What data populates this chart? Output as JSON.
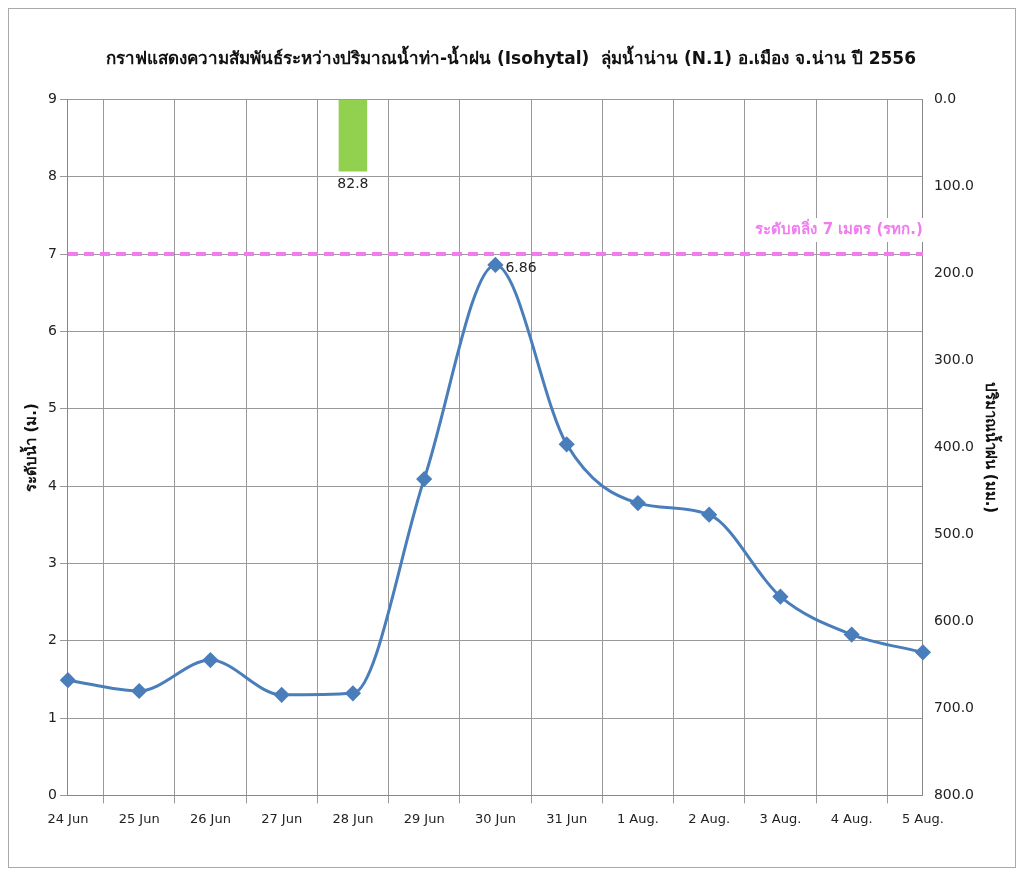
{
  "chart_data": {
    "type": "line",
    "title": "กราฟแสดงความสัมพันธ์ระหว่างปริมาณน้ำท่า-น้ำฝน (Isohytal)  ลุ่มน้ำน่าน (N.1) อ.เมือง จ.น่าน ปี 2556",
    "ylabel": "ระดับน้ำ (ม.)",
    "y2label": "ปริมาณน้ำฝน (มม.)",
    "categories": [
      "24 Jun",
      "25 Jun",
      "26 Jun",
      "27 Jun",
      "28 Jun",
      "29 Jun",
      "30 Jun",
      "31 Jun",
      "1 Aug.",
      "2 Aug.",
      "3 Aug.",
      "4 Aug.",
      "5 Aug."
    ],
    "series": [
      {
        "type": "bar",
        "axis": "y2",
        "color": "#92d050",
        "values": [
          null,
          null,
          null,
          null,
          82.8,
          null,
          null,
          null,
          null,
          null,
          null,
          null,
          null
        ],
        "value_labels": [
          null,
          null,
          null,
          null,
          "82.8",
          null,
          null,
          null,
          null,
          null,
          null,
          null,
          null
        ]
      },
      {
        "color": "#4a7ebb",
        "values": [
          1.49,
          1.35,
          1.75,
          1.3,
          1.32,
          4.09,
          6.86,
          4.54,
          3.78,
          3.63,
          2.57,
          2.08,
          1.85
        ],
        "value_labels": [
          null,
          null,
          null,
          null,
          null,
          null,
          "6.86",
          null,
          null,
          null,
          null,
          null,
          null
        ]
      }
    ],
    "ylim": [
      0,
      9
    ],
    "yticks": [
      0,
      1,
      2,
      3,
      4,
      5,
      6,
      7,
      8,
      9
    ],
    "y2lim": [
      800,
      0
    ],
    "y2ticks": [
      {
        "value": 0,
        "label": "0.0"
      },
      {
        "value": 100,
        "label": "100.0"
      },
      {
        "value": 200,
        "label": "200.0"
      },
      {
        "value": 300,
        "label": "300.0"
      },
      {
        "value": 400,
        "label": "400.0"
      },
      {
        "value": 500,
        "label": "500.0"
      },
      {
        "value": 600,
        "label": "600.0"
      },
      {
        "value": 700,
        "label": "700.0"
      },
      {
        "value": 800,
        "label": "800.0"
      }
    ],
    "ref_lines": [
      {
        "axis": "y",
        "value": 7,
        "label": "ระดับตลิ่ง 7 เมตร (รทก.)",
        "color": "#f07cf0",
        "line_style": "dashed"
      }
    ],
    "grid": true,
    "marker": "diamond",
    "line_style": "solid"
  }
}
